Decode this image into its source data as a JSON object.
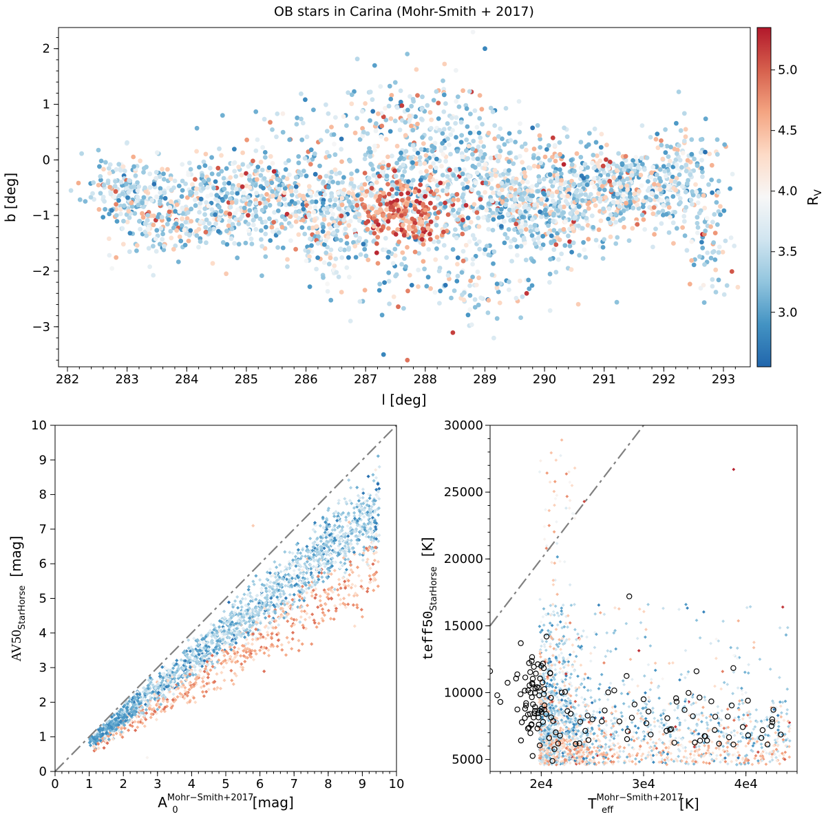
{
  "colors": {
    "colormap": [
      "#2166ac",
      "#4393c3",
      "#92c5de",
      "#d1e5f0",
      "#f7f7f7",
      "#fddbc7",
      "#f4a582",
      "#d6604d",
      "#b2182b"
    ],
    "reference_line": "#808080",
    "open_marker": "#000000"
  },
  "chart_data": [
    {
      "type": "scatter",
      "title": "OB stars in Carina (Mohr-Smith + 2017)",
      "xlabel": "l [deg]",
      "ylabel": "b  [deg]",
      "xlim": [
        281.85,
        293.45
      ],
      "ylim": [
        -3.72,
        2.38
      ],
      "xticks": [
        282,
        283,
        284,
        285,
        286,
        287,
        288,
        289,
        290,
        291,
        292,
        293
      ],
      "yticks": [
        -3,
        -2,
        -1,
        0,
        1,
        2
      ],
      "ytick_labels": [
        "−3",
        "−2",
        "−1",
        "0",
        "1",
        "2"
      ],
      "color_encoding": "R_V",
      "n_points_approx": 3000,
      "density_note": "points concentrated along b ≈ -1 to 0, with a dense high-R_V clump near l=287.5-288, b=-1",
      "series": [
        {
          "name": "OB stars",
          "points": [
            [
              287.5,
              -0.8,
              4.9
            ],
            [
              287.6,
              -1.0,
              5.1
            ],
            [
              287.8,
              -1.2,
              4.8
            ],
            [
              287.3,
              -0.6,
              4.6
            ],
            [
              288.0,
              -0.9,
              4.7
            ],
            [
              282.9,
              -0.4,
              3.6
            ],
            [
              283.3,
              -0.5,
              3.5
            ],
            [
              291.0,
              -0.4,
              3.3
            ],
            [
              290.5,
              -0.2,
              3.2
            ],
            [
              288.8,
              2.3,
              3.9
            ],
            [
              287.7,
              -3.6,
              4.9
            ],
            [
              289.7,
              -2.4,
              5.2
            ],
            [
              291.8,
              -0.6,
              3.8
            ],
            [
              284.6,
              0.8,
              3.1
            ],
            [
              292.9,
              0.1,
              3.4
            ],
            [
              286.2,
              -1.5,
              3.6
            ],
            [
              289.0,
              2.0,
              2.8
            ],
            [
              287.3,
              -3.5,
              2.8
            ],
            [
              288.3,
              0.1,
              4.0
            ],
            [
              284.8,
              -1.5,
              3.7
            ]
          ]
        }
      ]
    },
    {
      "type": "scatter",
      "xlabel_main": "A",
      "xlabel_sub": "0",
      "xlabel_sup": "Mohr−Smith+2017",
      "xlabel_unit": "[mag]",
      "ylabel_main": "AV50",
      "ylabel_sub": "StarHorse",
      "ylabel_unit": "[mag]",
      "xlim": [
        0,
        10
      ],
      "ylim": [
        0,
        10
      ],
      "xticks": [
        0,
        1,
        2,
        3,
        4,
        5,
        6,
        7,
        8,
        9,
        10
      ],
      "yticks": [
        0,
        1,
        2,
        3,
        4,
        5,
        6,
        7,
        8,
        9,
        10
      ],
      "reference_line": "y = x",
      "color_encoding": "R_V",
      "n_points_approx": 2600,
      "series": [
        {
          "name": "OB stars",
          "points": [
            [
              1.2,
              1.0,
              3.0
            ],
            [
              1.5,
              1.1,
              2.8
            ],
            [
              2.0,
              1.7,
              3.4
            ],
            [
              3.0,
              2.5,
              3.6
            ],
            [
              4.0,
              3.2,
              3.5
            ],
            [
              5.0,
              4.0,
              3.6
            ],
            [
              6.0,
              4.8,
              3.7
            ],
            [
              7.0,
              5.8,
              3.8
            ],
            [
              8.0,
              6.9,
              3.7
            ],
            [
              9.5,
              8.8,
              3.6
            ],
            [
              5.5,
              3.0,
              4.4
            ],
            [
              6.0,
              3.5,
              4.6
            ],
            [
              8.5,
              5.3,
              4.9
            ],
            [
              5.8,
              7.1,
              4.4
            ],
            [
              9.3,
              6.6,
              3.9
            ],
            [
              2.7,
              0.4,
              4.0
            ]
          ]
        }
      ]
    },
    {
      "type": "scatter",
      "xlabel_main": "T",
      "xlabel_sub": "eff",
      "xlabel_sup": "Mohr−Smith+2017",
      "xlabel_unit": "[K]",
      "ylabel_main": "teff50",
      "ylabel_sub": "StarHorse",
      "ylabel_unit": "[K]",
      "xlim": [
        15000,
        45000
      ],
      "ylim": [
        4100,
        30000
      ],
      "xticks": [
        20000,
        30000,
        40000
      ],
      "xtick_labels": [
        "2e4",
        "3e4",
        "4e4"
      ],
      "yticks": [
        5000,
        10000,
        15000,
        20000,
        25000,
        30000
      ],
      "reference_line": "y = x",
      "color_encoding": "R_V",
      "n_points_approx": 2200,
      "series": [
        {
          "name": "OB stars",
          "points": [
            [
              20000,
              9000,
              3.3
            ],
            [
              21000,
              10500,
              3.0
            ],
            [
              25000,
              8000,
              3.6
            ],
            [
              30000,
              7000,
              3.7
            ],
            [
              35000,
              6500,
              4.0
            ],
            [
              40000,
              6000,
              4.3
            ],
            [
              22000,
              28900,
              4.5
            ],
            [
              38800,
              26700,
              5.3
            ],
            [
              24200,
              24300,
              5.1
            ],
            [
              43600,
              16400,
              5.2
            ],
            [
              43800,
              5000,
              5.0
            ],
            [
              20500,
              20800,
              4.8
            ]
          ]
        },
        {
          "name": "open circles (subset)",
          "points": [
            [
              15000,
              11600
            ],
            [
              15700,
              9800
            ],
            [
              16000,
              9300
            ],
            [
              18000,
              13700
            ],
            [
              20000,
              12000
            ],
            [
              22000,
              10000
            ],
            [
              25000,
              8000
            ],
            [
              28600,
              17200
            ],
            [
              30000,
              9500
            ],
            [
              34000,
              8700
            ],
            [
              37000,
              8200
            ],
            [
              42500,
              7500
            ],
            [
              40200,
              9400
            ]
          ]
        }
      ]
    }
  ],
  "colorbar": {
    "label": "R",
    "label_sub": "V",
    "range": [
      2.55,
      5.35
    ],
    "ticks": [
      3.0,
      3.5,
      4.0,
      4.5,
      5.0
    ],
    "tick_labels": [
      "3.0",
      "3.5",
      "4.0",
      "4.5",
      "5.0"
    ]
  }
}
